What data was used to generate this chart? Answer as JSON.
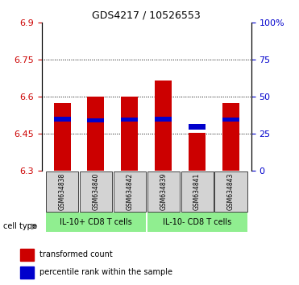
{
  "title": "GDS4217 / 10526553",
  "samples": [
    "GSM634838",
    "GSM634840",
    "GSM634842",
    "GSM634839",
    "GSM634841",
    "GSM634843"
  ],
  "bar_bottoms": [
    6.3,
    6.3,
    6.3,
    6.3,
    6.3,
    6.3
  ],
  "bar_tops": [
    6.575,
    6.6,
    6.6,
    6.665,
    6.455,
    6.575
  ],
  "percentile_values": [
    6.51,
    6.505,
    6.508,
    6.51,
    6.478,
    6.508
  ],
  "percentile_heights": [
    0.018,
    0.018,
    0.018,
    0.018,
    0.022,
    0.018
  ],
  "ylim_min": 6.3,
  "ylim_max": 6.9,
  "yticks_left": [
    6.3,
    6.45,
    6.6,
    6.75,
    6.9
  ],
  "yticks_right": [
    0,
    25,
    50,
    75,
    100
  ],
  "ytick_labels_right": [
    "0",
    "25",
    "50",
    "75",
    "100%"
  ],
  "bar_color": "#cc0000",
  "percentile_color": "#0000cc",
  "group1_label": "IL-10+ CD8 T cells",
  "group2_label": "IL-10- CD8 T cells",
  "group1_indices": [
    0,
    1,
    2
  ],
  "group2_indices": [
    3,
    4,
    5
  ],
  "group_bg_color": "#90ee90",
  "sample_bg_color": "#d3d3d3",
  "cell_type_label": "cell type",
  "legend_red_label": "transformed count",
  "legend_blue_label": "percentile rank within the sample",
  "grid_color": "black",
  "left_tick_color": "#cc0000",
  "right_tick_color": "#0000cc"
}
